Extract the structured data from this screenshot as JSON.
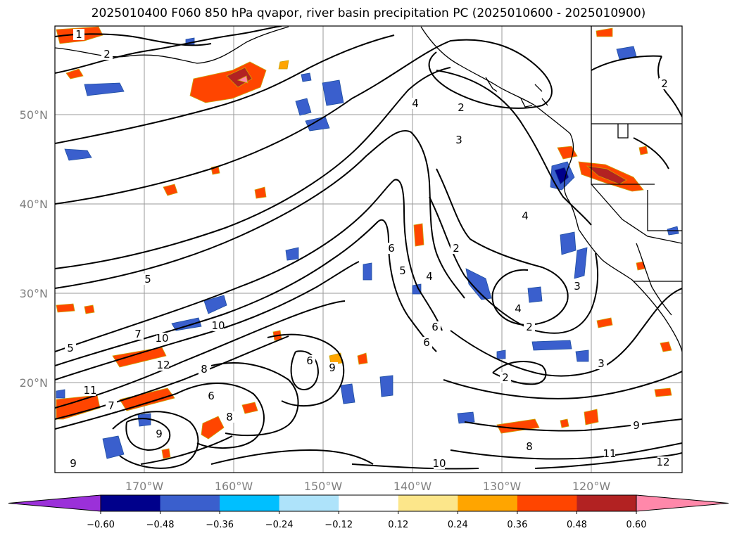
{
  "title": "2025010400 F060 850 hPa qvapor, river basin precipitation PC (2025010600 - 2025010900)",
  "latitude_labels": [
    "50°N",
    "40°N",
    "30°N",
    "20°N"
  ],
  "longitude_labels": [
    "170°W",
    "160°W",
    "150°W",
    "140°W",
    "130°W",
    "120°W"
  ],
  "contour_labels": [
    "1",
    "2",
    "2",
    "2",
    "3",
    "4",
    "4",
    "4",
    "5",
    "5",
    "6",
    "6",
    "6",
    "7",
    "7",
    "8",
    "9",
    "9",
    "10",
    "10",
    "10",
    "11",
    "11",
    "12",
    "5",
    "6",
    "2",
    "3",
    "4",
    "3",
    "2",
    "6",
    "9",
    "8",
    "8",
    "9",
    "2",
    "12"
  ],
  "colorbar": {
    "ticks": [
      "−0.60",
      "−0.48",
      "−0.36",
      "−0.24",
      "−0.12",
      "0.12",
      "0.24",
      "0.36",
      "0.48",
      "0.60"
    ],
    "colors": [
      "#9b30d9",
      "#00008b",
      "#3a5fcd",
      "#00bfff",
      "#aee3fa",
      "#ffffff",
      "#fce68a",
      "#ffa500",
      "#ff4500",
      "#b22222",
      "#ff88aa"
    ]
  }
}
